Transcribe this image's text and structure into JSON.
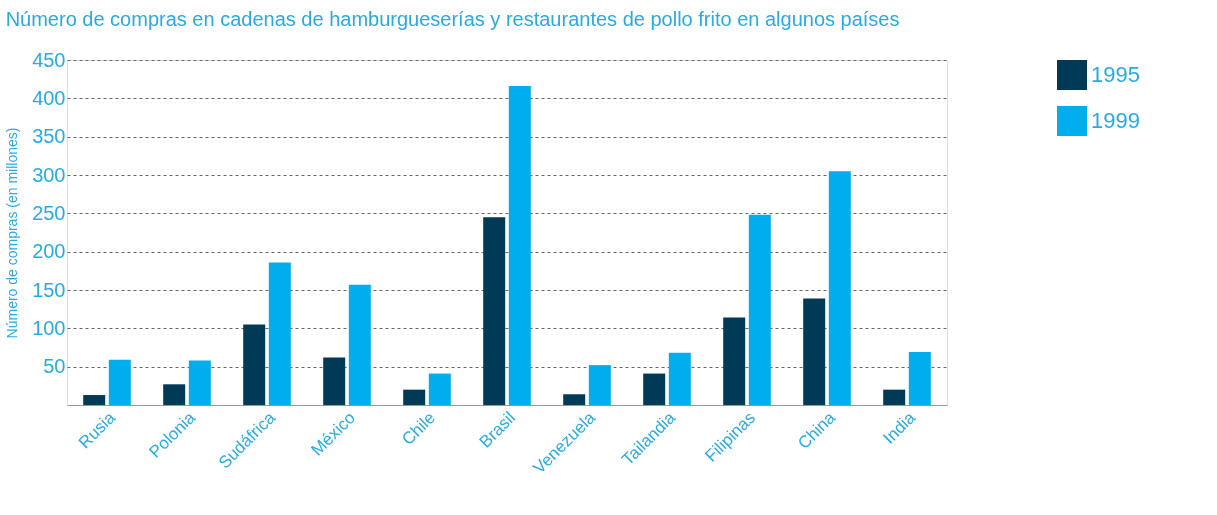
{
  "chart_data": {
    "type": "bar",
    "title": "Número de compras en cadenas de hamburgueserías y restaurantes de pollo frito en algunos países",
    "ylabel": "Número de compras (en millones)",
    "categories": [
      "Rusia",
      "Polonia",
      "Sudáfrica",
      "México",
      "Chile",
      "Brasil",
      "Venezuela",
      "Tailandia",
      "Filipinas",
      "China",
      "India"
    ],
    "series": [
      {
        "name": "1995",
        "color": "#003a57",
        "values": [
          13,
          27,
          105,
          62,
          20,
          245,
          14,
          41,
          114,
          139,
          20
        ]
      },
      {
        "name": "1999",
        "color": "#00aeef",
        "values": [
          59,
          58,
          186,
          157,
          41,
          416,
          52,
          68,
          248,
          305,
          69
        ]
      }
    ],
    "ylim": [
      0,
      450
    ],
    "yticks": [
      50,
      100,
      150,
      200,
      250,
      300,
      350,
      400,
      450
    ],
    "grid": "y",
    "legend": "top right"
  }
}
